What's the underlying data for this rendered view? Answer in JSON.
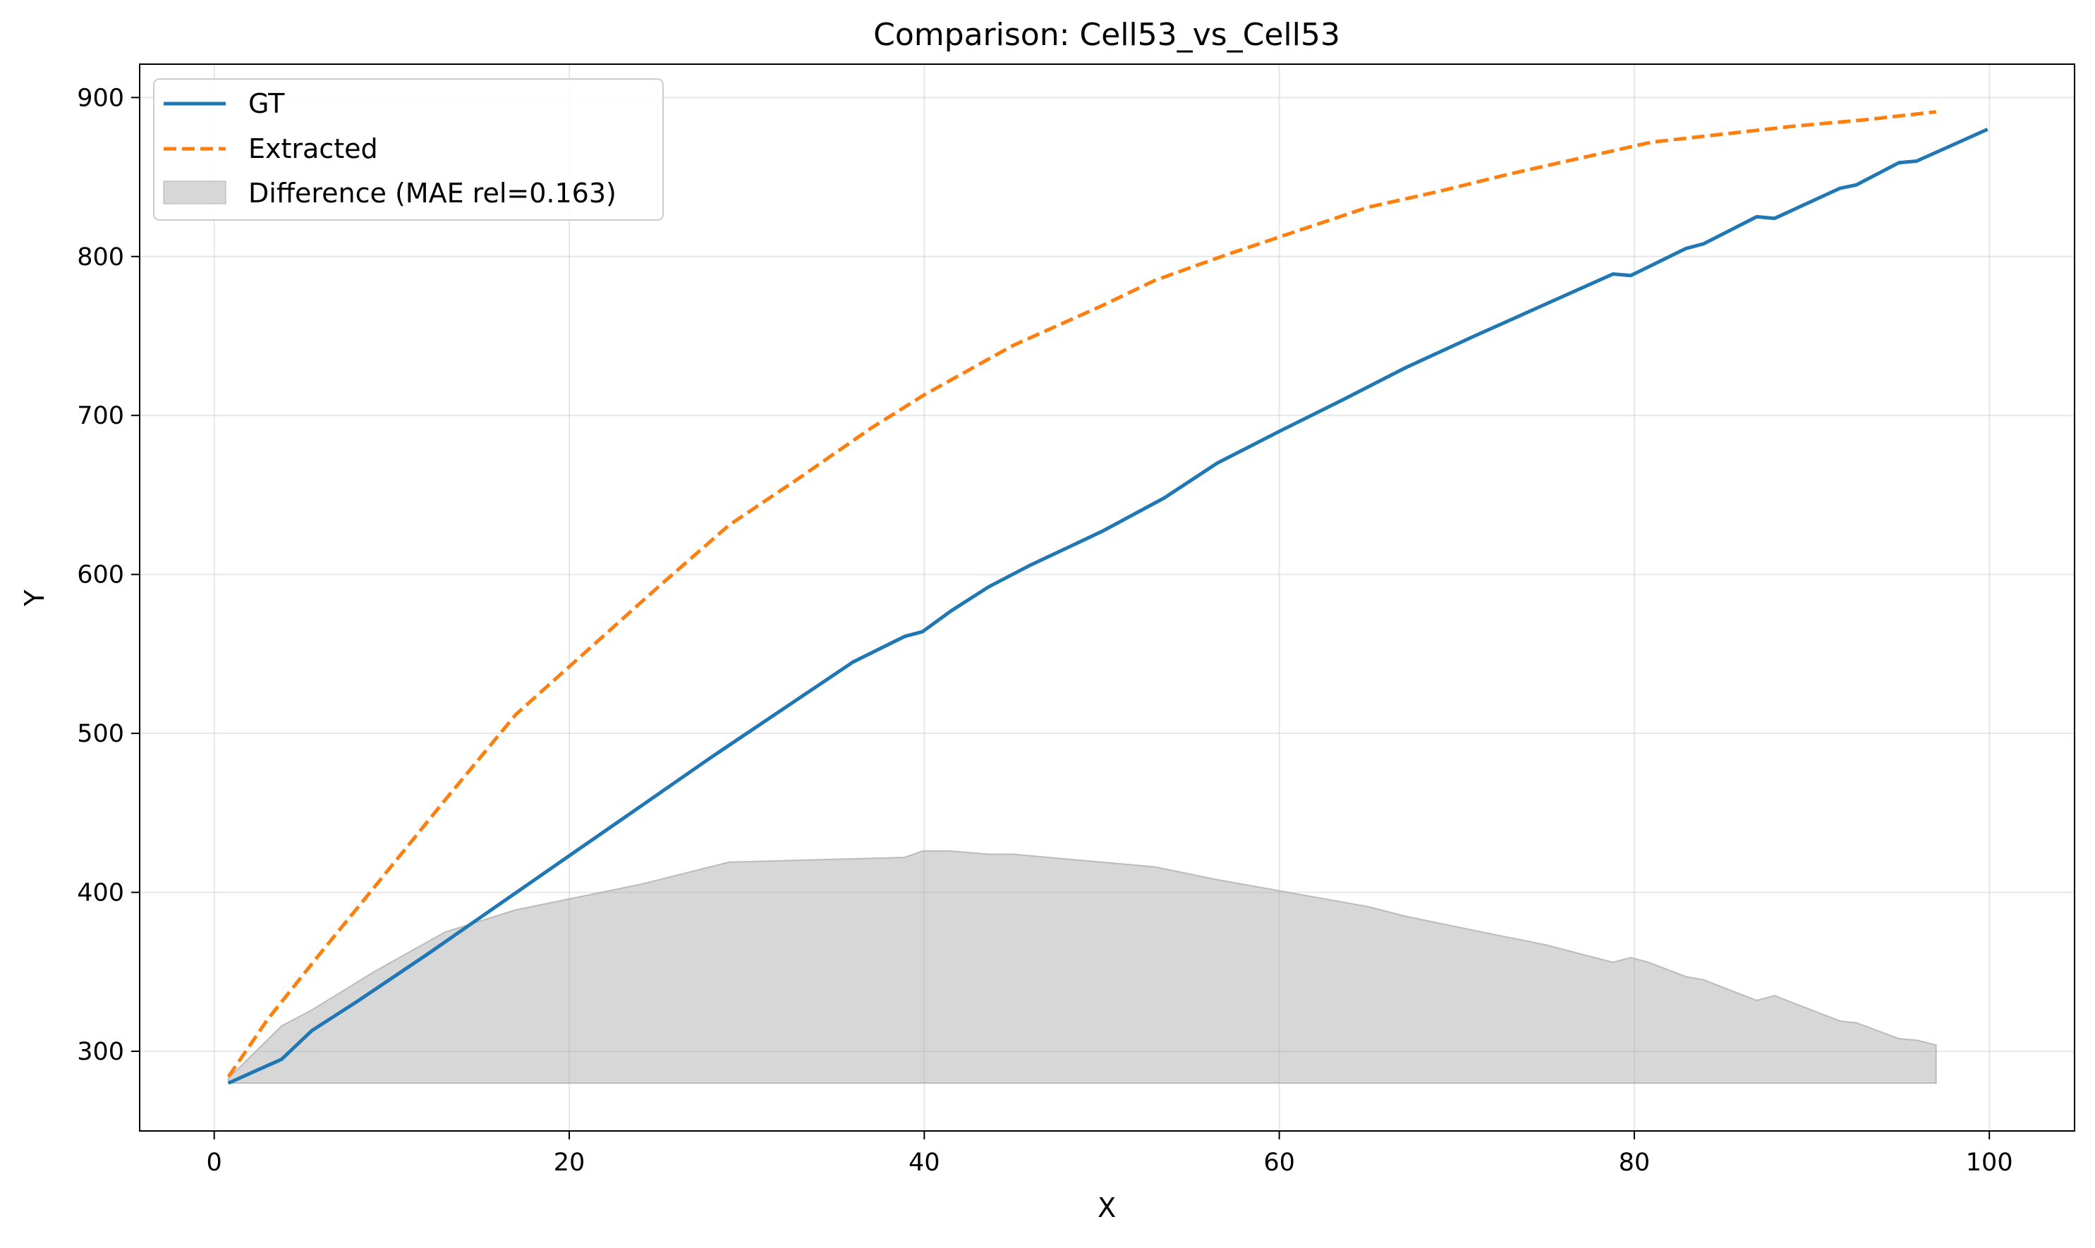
{
  "chart_data": {
    "type": "line",
    "title": "Comparison: Cell53_vs_Cell53",
    "xlabel": "X",
    "ylabel": "Y",
    "xlim": [
      -4.2,
      104.8
    ],
    "ylim": [
      249.9,
      921.0
    ],
    "x_ticks": [
      0,
      20,
      40,
      60,
      80,
      100
    ],
    "y_ticks": [
      300,
      400,
      500,
      600,
      700,
      800,
      900
    ],
    "grid": true,
    "legend_position": "top-left",
    "series": [
      {
        "name": "GT",
        "style": "solid",
        "color": "#1f77b4",
        "x": [
          0.8,
          3.8,
          5.5,
          8.0,
          12.0,
          16.0,
          20.0,
          24.0,
          28.0,
          32.0,
          36.0,
          38.9,
          39.9,
          41.5,
          43.6,
          46.0,
          50.0,
          53.5,
          56.5,
          60.0,
          63.6,
          67.1,
          71.0,
          75.0,
          78.8,
          79.8,
          82.9,
          83.9,
          86.9,
          87.9,
          91.6,
          92.5,
          94.9,
          95.9,
          99.9
        ],
        "y": [
          280,
          295,
          313,
          331,
          361,
          392,
          423,
          454,
          485,
          515,
          545,
          561,
          564,
          577,
          592,
          606,
          627,
          648,
          670,
          690,
          710,
          730,
          750,
          770,
          789,
          788,
          805,
          808,
          825,
          824,
          843,
          845,
          859,
          860,
          880
        ]
      },
      {
        "name": "Extracted",
        "style": "dashed",
        "color": "#ff7f0e",
        "x": [
          0.8,
          3.0,
          6.0,
          9.0,
          13.0,
          17.0,
          21.0,
          25.0,
          29.0,
          33.0,
          37.0,
          40.0,
          45.0,
          50.0,
          53.0,
          57.0,
          61.0,
          65.0,
          69.0,
          73.0,
          77.0,
          81.0,
          85.0,
          89.0,
          93.0,
          97.0
        ],
        "y": [
          284,
          320,
          362,
          403,
          458,
          512,
          552,
          592,
          631,
          661,
          692,
          713,
          744,
          769,
          785,
          801,
          816,
          831,
          841,
          852,
          862,
          872,
          877,
          882,
          886,
          891
        ]
      }
    ],
    "difference_band": {
      "name": "Difference (MAE rel=0.163)",
      "color": "#b0b0b0",
      "baseline": 280,
      "x": [
        0.8,
        3.8,
        5.5,
        9.0,
        13.0,
        17.0,
        24.0,
        29.0,
        38.9,
        39.9,
        41.5,
        43.6,
        45.0,
        53.0,
        56.5,
        60.0,
        65.0,
        67.1,
        71.0,
        75.0,
        78.8,
        79.8,
        80.8,
        82.9,
        83.9,
        86.9,
        87.9,
        91.6,
        92.5,
        94.9,
        95.9,
        97.0
      ],
      "y": [
        283,
        316,
        326,
        350,
        375,
        389,
        405,
        419,
        422,
        426,
        426,
        424,
        424,
        416,
        408,
        401,
        391,
        385,
        376,
        367,
        356,
        359,
        356,
        347,
        345,
        332,
        335,
        319,
        318,
        308,
        307,
        304
      ]
    }
  }
}
